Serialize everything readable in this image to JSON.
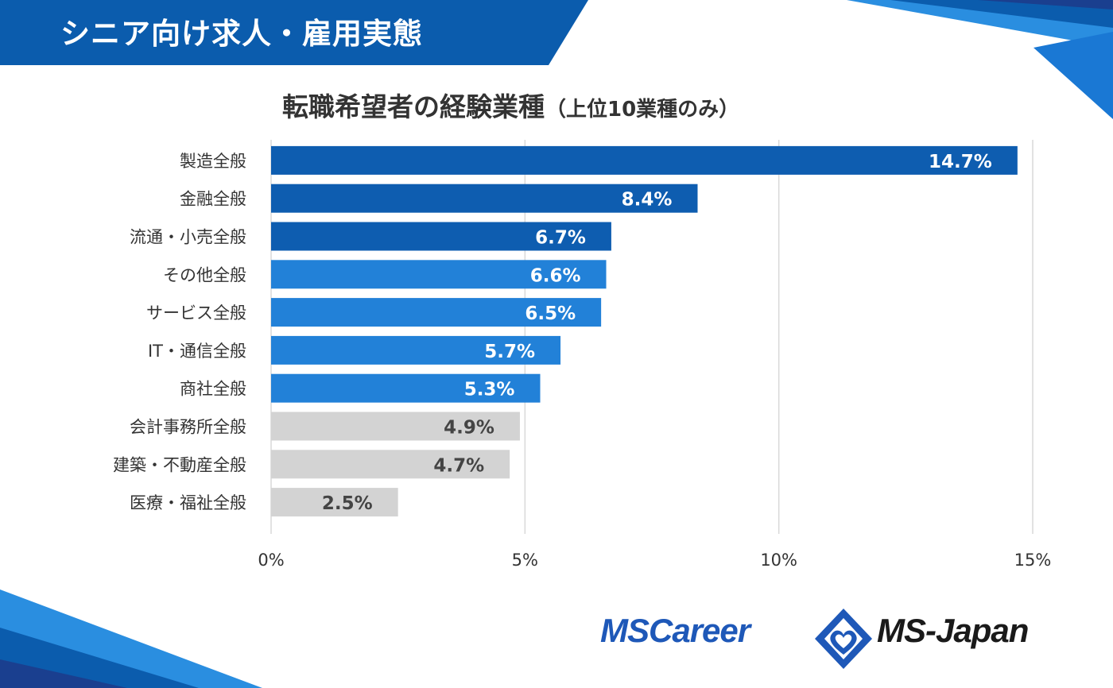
{
  "header": {
    "label": "シニア向け求人・雇用実態"
  },
  "colors": {
    "dark_blue": "#0e5db0",
    "mid_blue": "#2281d8",
    "gray": "#d3d3d3",
    "grid": "#d9d9d9",
    "header_blue": "#0b5cad"
  },
  "chart_data": {
    "type": "bar",
    "orientation": "horizontal",
    "title": "転職希望者の経験業種",
    "subtitle": "（上位10業種のみ）",
    "categories": [
      "製造全般",
      "金融全般",
      "流通・小売全般",
      "その他全般",
      "サービス全般",
      "IT・通信全般",
      "商社全般",
      "会計事務所全般",
      "建築・不動産全般",
      "医療・福祉全般"
    ],
    "values": [
      14.7,
      8.4,
      6.7,
      6.6,
      6.5,
      5.7,
      5.3,
      4.9,
      4.7,
      2.5
    ],
    "value_labels": [
      "14.7%",
      "8.4%",
      "6.7%",
      "6.6%",
      "6.5%",
      "5.7%",
      "5.3%",
      "4.9%",
      "4.7%",
      "2.5%"
    ],
    "bar_color_groups": [
      "dark",
      "dark",
      "dark",
      "mid",
      "mid",
      "mid",
      "mid",
      "gray",
      "gray",
      "gray"
    ],
    "xlim": [
      0,
      15
    ],
    "xticks": [
      0,
      5,
      10,
      15
    ],
    "xtick_labels": [
      "0%",
      "5%",
      "10%",
      "15%"
    ],
    "grid": true,
    "legend": "none"
  },
  "logos": {
    "left": "MSCareer",
    "right": "MS-Japan",
    "mark": "ms-diamond-heart-logo"
  }
}
